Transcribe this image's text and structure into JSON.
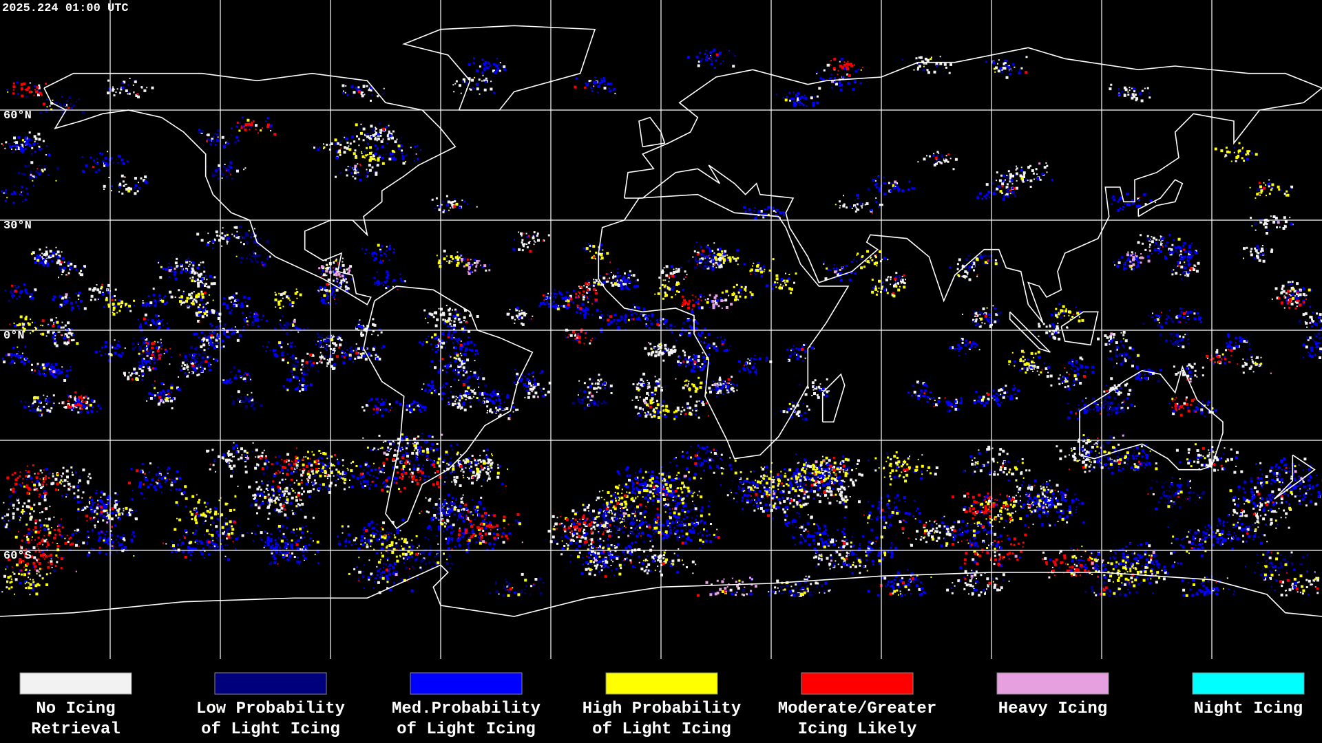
{
  "header": {
    "timestamp": "2025.224 01:00 UTC"
  },
  "map": {
    "lat_labels": [
      "60°N",
      "30°N",
      "0°N",
      "60°S"
    ]
  },
  "legend": [
    {
      "label": [
        "No Icing",
        "Retrieval"
      ],
      "color": "#f2f2f2"
    },
    {
      "label": [
        "Low Probability",
        "of Light Icing"
      ],
      "color": "#00007c"
    },
    {
      "label": [
        "Med.Probability",
        "of Light Icing"
      ],
      "color": "#0000ff"
    },
    {
      "label": [
        "High Probability",
        "of Light Icing"
      ],
      "color": "#ffff00"
    },
    {
      "label": [
        "Moderate/Greater",
        "Icing Likely"
      ],
      "color": "#ff0000"
    },
    {
      "label": [
        "Heavy Icing"
      ],
      "color": "#e6a0e0"
    },
    {
      "label": [
        "Night Icing"
      ],
      "color": "#00ffff"
    }
  ]
}
